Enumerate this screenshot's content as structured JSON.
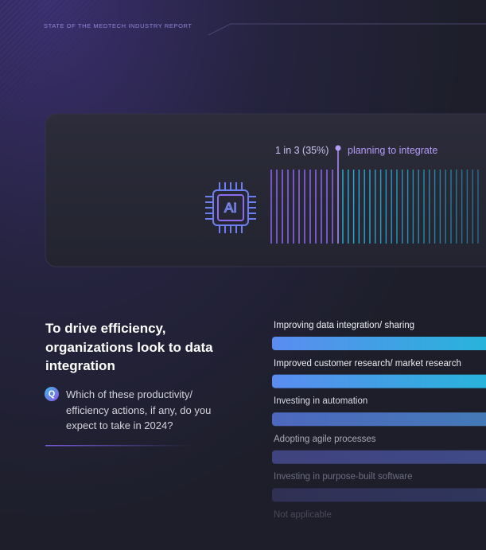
{
  "header": {
    "title": "STATE OF THE MEDTECH INDUSTRY REPORT"
  },
  "callout": {
    "icon": "AI",
    "stat": "1 in 3 (35%)",
    "label": "planning to integrate"
  },
  "section": {
    "heading": "To drive efficiency, organizations look to data integration",
    "badge": "Q",
    "question": "Which of these productivity/ efficiency actions, if any, do you expect to take in 2024?"
  },
  "options": [
    "Improving data integration/ sharing",
    "Improved customer research/ market research",
    "Investing in automation",
    "Adopting agile processes",
    "Investing in purpose-built software",
    "Not applicable"
  ]
}
